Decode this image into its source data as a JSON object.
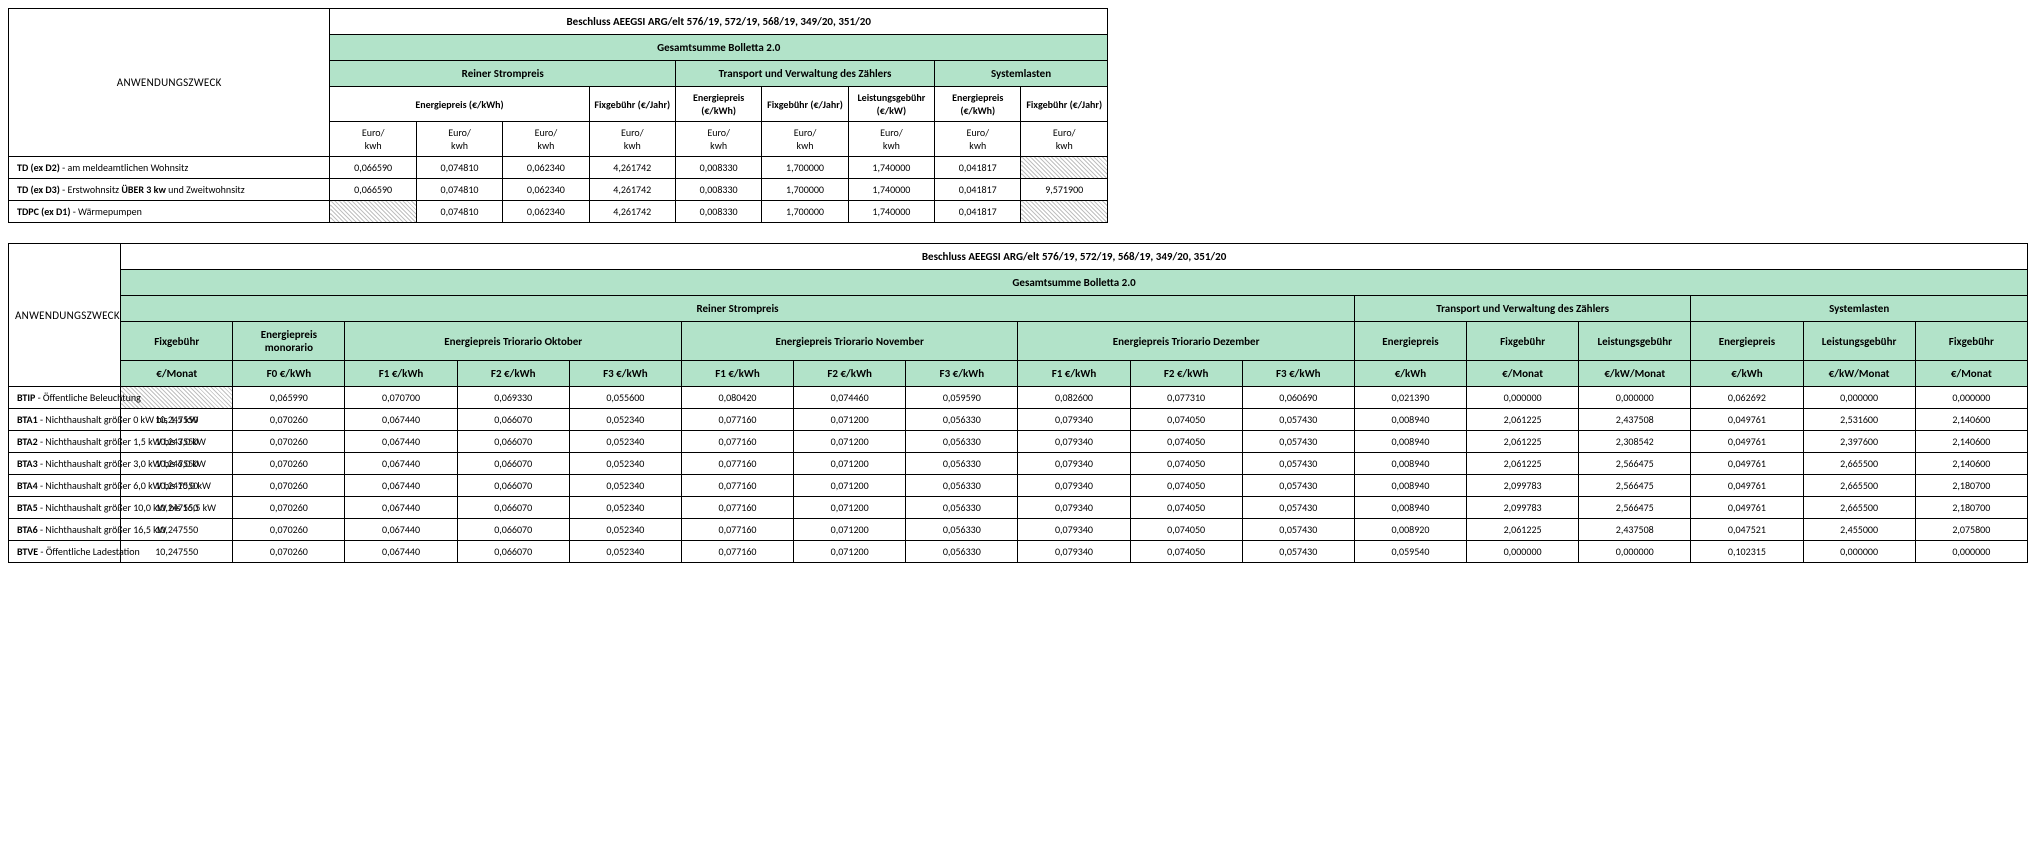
{
  "common": {
    "beschluss": "Beschluss AEEGSI ARG/elt 576/19, 572/19, 568/19, 349/20, 351/20",
    "gesamtsumme": "Gesamtsumme Bolletta 2.0",
    "anwendung": "ANWENDUNGSZWECK",
    "euro_kwh": "Euro/\nkwh"
  },
  "t1": {
    "groups": {
      "strom": "Reiner Strompreis",
      "transport": "Transport und Verwaltung des Zählers",
      "system": "Systemlasten"
    },
    "sub": {
      "energiepreis_kwh": "Energiepreis (€/kWh)",
      "fixgebuehr_jahr": "Fixgebühr (€/Jahr)",
      "energiepreis_kwh2": "Energiepreis (€/kWh)",
      "leistungsgebuehr_kw": "Leistungsgebühr (€/kW)"
    },
    "rows": [
      {
        "code": "TD (ex D2)",
        "desc": " - am meldeamtlichen Wohnsitz",
        "v": [
          "0,066590",
          "0,074810",
          "0,062340",
          "4,261742",
          "0,008330",
          "1,700000",
          "1,740000",
          "0,041817",
          null
        ]
      },
      {
        "code": "TD (ex D3)",
        "desc": " - Erstwohnsitz ",
        "extra": "ÜBER 3 kw",
        "desc2": " und Zweitwohnsitz",
        "v": [
          "0,066590",
          "0,074810",
          "0,062340",
          "4,261742",
          "0,008330",
          "1,700000",
          "1,740000",
          "0,041817",
          "9,571900"
        ]
      },
      {
        "code": "TDPC (ex D1)",
        "desc": " - Wärmepumpen",
        "v": [
          null,
          "0,074810",
          "0,062340",
          "4,261742",
          "0,008330",
          "1,700000",
          "1,740000",
          "0,041817",
          null
        ]
      }
    ]
  },
  "t2": {
    "groups": {
      "strom": "Reiner Strompreis",
      "transport": "Transport und Verwaltung des Zählers",
      "system": "Systemlasten"
    },
    "sub1": {
      "fix": "Fixgebühr",
      "mono": "Energiepreis monorario",
      "okt": "Energiepreis Triorario Oktober",
      "nov": "Energiepreis Triorario November",
      "dez": "Energiepreis Triorario Dezember",
      "t_ep": "Energiepreis",
      "t_fix": "Fixgebühr",
      "t_leist": "Leistungsgebühr",
      "s_ep": "Energiepreis",
      "s_leist": "Leistungsgebühr",
      "s_fix": "Fixgebühr"
    },
    "sub2": {
      "e_monat": "€/Monat",
      "f0": "F0 €/kWh",
      "f1": "F1 €/kWh",
      "f2": "F2 €/kWh",
      "f3": "F3 €/kWh",
      "e_kwh": "€/kWh",
      "e_kw_monat": "€/kW/Monat"
    },
    "rows": [
      {
        "code": "BTIP",
        "desc": " - Öffentliche Beleuchtung",
        "v": [
          null,
          "0,065990",
          "0,070700",
          "0,069330",
          "0,055600",
          "0,080420",
          "0,074460",
          "0,059590",
          "0,082600",
          "0,077310",
          "0,060690",
          "0,021390",
          "0,000000",
          "0,000000",
          "0,062692",
          "0,000000",
          "0,000000"
        ]
      },
      {
        "code": "BTA1",
        "desc": " - Nichthaushalt größer 0 kW bis 1,5 kW",
        "v": [
          "10,247550",
          "0,070260",
          "0,067440",
          "0,066070",
          "0,052340",
          "0,077160",
          "0,071200",
          "0,056330",
          "0,079340",
          "0,074050",
          "0,057430",
          "0,008940",
          "2,061225",
          "2,437508",
          "0,049761",
          "2,531600",
          "2,140600"
        ]
      },
      {
        "code": "BTA2",
        "desc": " - Nichthaushalt größer 1,5 kW bis 3,0 kW",
        "v": [
          "10,247550",
          "0,070260",
          "0,067440",
          "0,066070",
          "0,052340",
          "0,077160",
          "0,071200",
          "0,056330",
          "0,079340",
          "0,074050",
          "0,057430",
          "0,008940",
          "2,061225",
          "2,308542",
          "0,049761",
          "2,397600",
          "2,140600"
        ]
      },
      {
        "code": "BTA3",
        "desc": " - Nichthaushalt größer 3,0 kW bis 6,0 kW",
        "v": [
          "10,247550",
          "0,070260",
          "0,067440",
          "0,066070",
          "0,052340",
          "0,077160",
          "0,071200",
          "0,056330",
          "0,079340",
          "0,074050",
          "0,057430",
          "0,008940",
          "2,061225",
          "2,566475",
          "0,049761",
          "2,665500",
          "2,140600"
        ]
      },
      {
        "code": "BTA4",
        "desc": " - Nichthaushalt größer 6,0 kW bis 10,0 kW",
        "v": [
          "10,247550",
          "0,070260",
          "0,067440",
          "0,066070",
          "0,052340",
          "0,077160",
          "0,071200",
          "0,056330",
          "0,079340",
          "0,074050",
          "0,057430",
          "0,008940",
          "2,099783",
          "2,566475",
          "0,049761",
          "2,665500",
          "2,180700"
        ]
      },
      {
        "code": "BTA5",
        "desc": " - Nichthaushalt größer 10,0 kW bis 16,5 kW",
        "v": [
          "10,247550",
          "0,070260",
          "0,067440",
          "0,066070",
          "0,052340",
          "0,077160",
          "0,071200",
          "0,056330",
          "0,079340",
          "0,074050",
          "0,057430",
          "0,008940",
          "2,099783",
          "2,566475",
          "0,049761",
          "2,665500",
          "2,180700"
        ]
      },
      {
        "code": "BTA6",
        "desc": " - Nichthaushalt größer 16,5 kW",
        "v": [
          "10,247550",
          "0,070260",
          "0,067440",
          "0,066070",
          "0,052340",
          "0,077160",
          "0,071200",
          "0,056330",
          "0,079340",
          "0,074050",
          "0,057430",
          "0,008920",
          "2,061225",
          "2,437508",
          "0,047521",
          "2,455000",
          "2,075800"
        ]
      },
      {
        "code": "BTVE",
        "desc": " - Öffentliche Ladestation",
        "v": [
          "10,247550",
          "0,070260",
          "0,067440",
          "0,066070",
          "0,052340",
          "0,077160",
          "0,071200",
          "0,056330",
          "0,079340",
          "0,074050",
          "0,057430",
          "0,059540",
          "0,000000",
          "0,000000",
          "0,102315",
          "0,000000",
          "0,000000"
        ]
      }
    ]
  }
}
